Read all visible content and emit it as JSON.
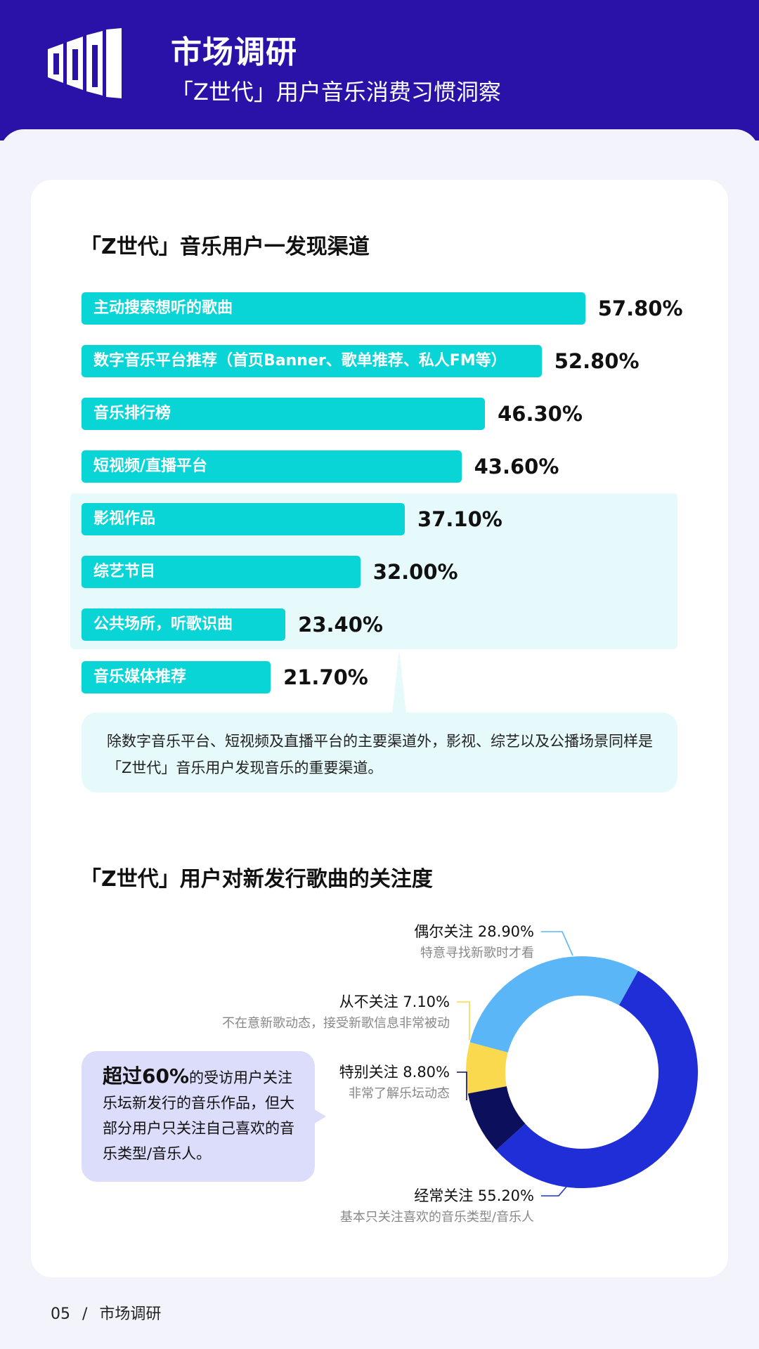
{
  "header": {
    "title": "市场调研",
    "subtitle": "「Z世代」用户音乐消费习惯洞察"
  },
  "chart_data": [
    {
      "type": "bar",
      "orientation": "horizontal",
      "title": "「Z世代」音乐用户一发现渠道",
      "categories": [
        "主动搜索想听的歌曲",
        "数字音乐平台推荐（首页Banner、歌单推荐、私人FM等）",
        "音乐排行榜",
        "短视频/直播平台",
        "影视作品",
        "综艺节目",
        "公共场所，听歌识曲",
        "音乐媒体推荐"
      ],
      "values": [
        57.8,
        52.8,
        46.3,
        43.6,
        37.1,
        32.0,
        23.4,
        21.7
      ],
      "value_labels": [
        "57.80%",
        "52.80%",
        "46.30%",
        "43.60%",
        "37.10%",
        "32.00%",
        "23.40%",
        "21.70%"
      ],
      "highlighted_categories": [
        "影视作品",
        "综艺节目",
        "公共场所，听歌识曲"
      ],
      "bar_color": "#09d4d6",
      "highlight_color": "#e6f9fb",
      "annotation": "除数字音乐平台、短视频及直播平台的主要渠道外，影视、综艺以及公播场景同样是「Z世代」音乐用户发现音乐的重要渠道。"
    },
    {
      "type": "pie",
      "style": "donut",
      "title": "「Z世代」用户对新发行歌曲的关注度",
      "slices": [
        {
          "label": "经常关注",
          "value": 55.2,
          "value_label": "55.20%",
          "description": "基本只关注喜欢的音乐类型/音乐人",
          "color": "#1f2ed6"
        },
        {
          "label": "特别关注",
          "value": 8.8,
          "value_label": "8.80%",
          "description": "非常了解乐坛动态",
          "color": "#0b0f5c"
        },
        {
          "label": "从不关注",
          "value": 7.1,
          "value_label": "7.10%",
          "description": "不在意新歌动态，接受新歌信息非常被动",
          "color": "#fbd94e"
        },
        {
          "label": "偶尔关注",
          "value": 28.9,
          "value_label": "28.90%",
          "description": "特意寻找新歌时才看",
          "color": "#5bb6f7"
        }
      ],
      "callout": {
        "strong": "超过60%",
        "text": "的受访用户关注乐坛新发行的音乐作品，但大部分用户只关注自己喜欢的音乐类型/音乐人。"
      }
    }
  ],
  "footer": {
    "page_number": "05",
    "separator": "/",
    "section": "市场调研"
  }
}
